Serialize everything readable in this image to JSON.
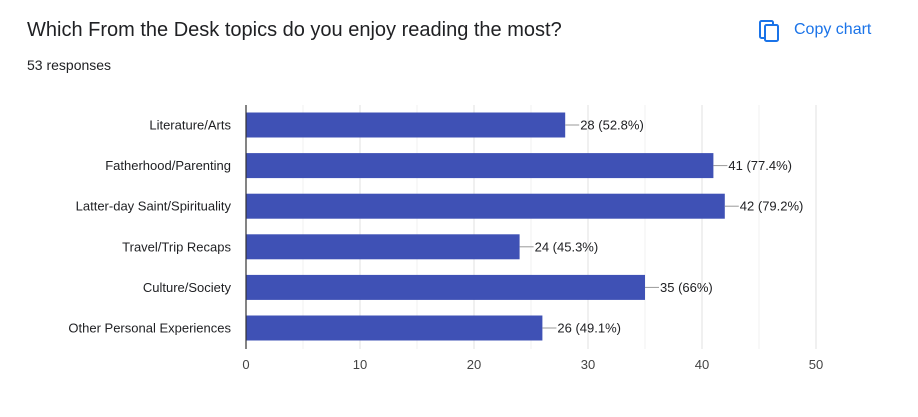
{
  "question": "Which From the Desk topics do you enjoy reading the most?",
  "responses": "53 responses",
  "copy_button": {
    "label": "Copy chart",
    "icon": "copy-icon"
  },
  "colors": {
    "bar": "#3f51b5",
    "accent": "#1a73e8",
    "grid": "#e0e0e0",
    "axis": "#333333"
  },
  "chart_data": {
    "type": "bar",
    "orientation": "horizontal",
    "categories": [
      "Literature/Arts",
      "Fatherhood/Parenting",
      "Latter-day Saint/Spirituality",
      "Travel/Trip Recaps",
      "Culture/Society",
      "Other Personal Experiences"
    ],
    "values": [
      28,
      41,
      42,
      24,
      35,
      26
    ],
    "data_labels": [
      "28 (52.8%)",
      "41 (77.4%)",
      "42 (79.2%)",
      "24 (45.3%)",
      "35 (66%)",
      "26 (49.1%)"
    ],
    "xlim": [
      0,
      50
    ],
    "xticks": [
      "0",
      "10",
      "20",
      "30",
      "40",
      "50"
    ],
    "grid": true
  }
}
